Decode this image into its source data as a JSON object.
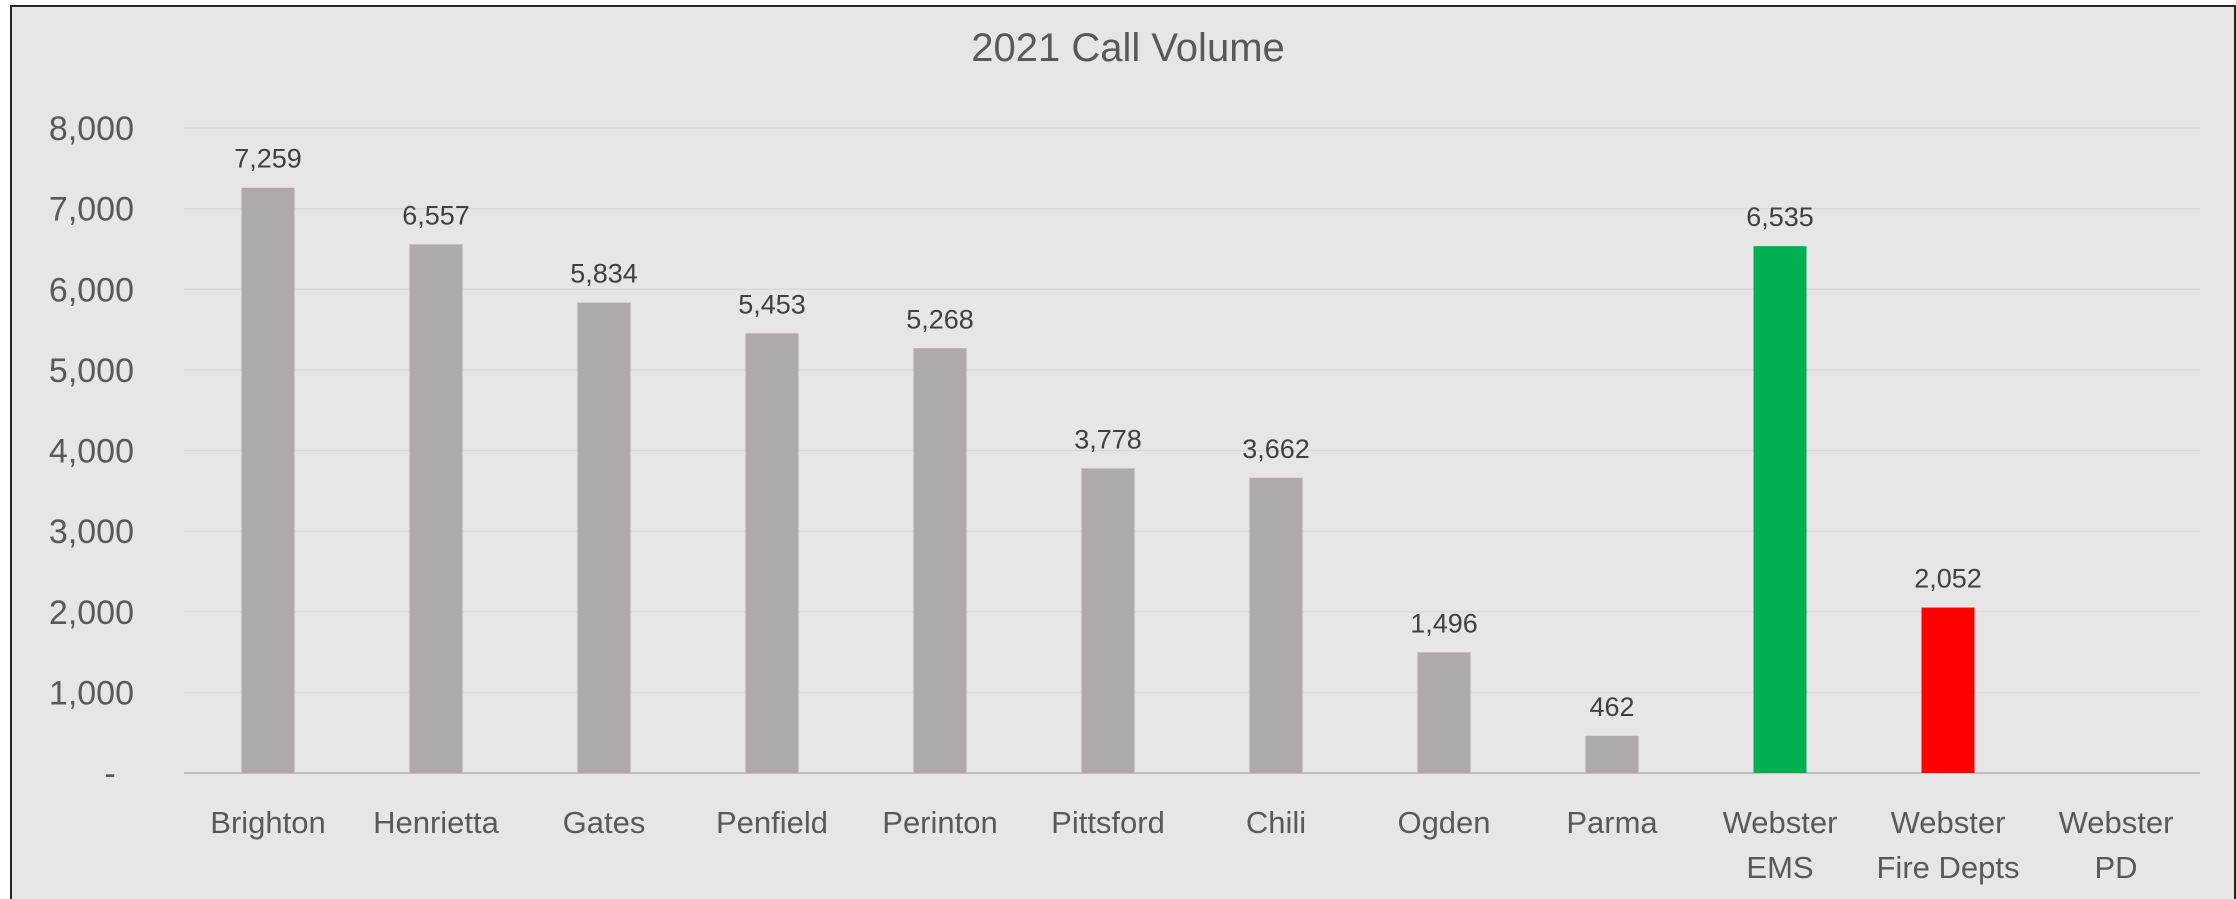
{
  "chart_data": {
    "type": "bar",
    "title": "2021 Call Volume",
    "xlabel": "",
    "ylabel": "",
    "ylim": [
      0,
      8000
    ],
    "y_ticks": [
      {
        "value": 0,
        "label": "-"
      },
      {
        "value": 1000,
        "label": "1,000"
      },
      {
        "value": 2000,
        "label": "2,000"
      },
      {
        "value": 3000,
        "label": "3,000"
      },
      {
        "value": 4000,
        "label": "4,000"
      },
      {
        "value": 5000,
        "label": "5,000"
      },
      {
        "value": 6000,
        "label": "6,000"
      },
      {
        "value": 7000,
        "label": "7,000"
      },
      {
        "value": 8000,
        "label": "8,000"
      }
    ],
    "grid": true,
    "legend": "none",
    "categories": [
      [
        "Brighton"
      ],
      [
        "Henrietta"
      ],
      [
        "Gates"
      ],
      [
        "Penfield"
      ],
      [
        "Perinton"
      ],
      [
        "Pittsford"
      ],
      [
        "Chili"
      ],
      [
        "Ogden"
      ],
      [
        "Parma"
      ],
      [
        "Webster",
        "EMS"
      ],
      [
        "Webster",
        "Fire Depts"
      ],
      [
        "Webster",
        "PD"
      ]
    ],
    "values": [
      7259,
      6557,
      5834,
      5453,
      5268,
      3778,
      3662,
      1496,
      462,
      6535,
      2052,
      null
    ],
    "data_labels": [
      "7,259",
      "6,557",
      "5,834",
      "5,453",
      "5,268",
      "3,778",
      "3,662",
      "1,496",
      "462",
      "6,535",
      "2,052",
      ""
    ],
    "colors": [
      "#aeaaaa",
      "#aeaaaa",
      "#aeaaaa",
      "#aeaaaa",
      "#aeaaaa",
      "#aeaaaa",
      "#aeaaaa",
      "#aeaaaa",
      "#aeaaaa",
      "#00b050",
      "#ff0000",
      "#aeaaaa"
    ],
    "background_color": "#e7e6e6",
    "gridline_color": "#d9d9d9"
  }
}
